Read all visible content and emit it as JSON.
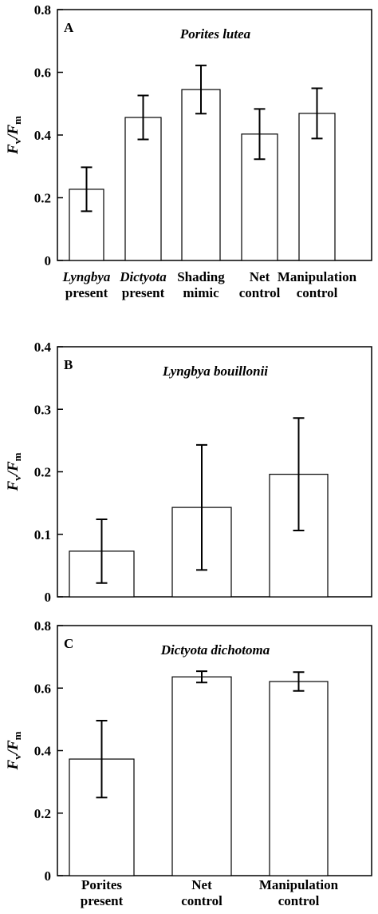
{
  "chart_data": [
    {
      "type": "bar",
      "panel_label": "A",
      "title": "Porites lutea",
      "ylabel": [
        "F",
        "v",
        "/F",
        "m"
      ],
      "categories": [
        [
          "Lyngbya",
          "present"
        ],
        [
          "Dictyota",
          "present"
        ],
        [
          "Shading",
          "mimic"
        ],
        [
          "Net",
          "control"
        ],
        [
          "Manipulation",
          "control"
        ]
      ],
      "category_styles": [
        "italic",
        "italic",
        "normal",
        "normal",
        "normal"
      ],
      "values": [
        0.227,
        0.456,
        0.545,
        0.403,
        0.469
      ],
      "errors": [
        0.07,
        0.07,
        0.077,
        0.08,
        0.08
      ],
      "color": "#ffffff",
      "ylim": [
        0,
        0.8
      ],
      "yticks": [
        0,
        0.2,
        0.4,
        0.6,
        0.8
      ]
    },
    {
      "type": "bar",
      "panel_label": "B",
      "title": "Lyngbya bouillonii",
      "ylabel": [
        "F",
        "v",
        "/F",
        "m"
      ],
      "categories": [
        null,
        null,
        null
      ],
      "values": [
        0.073,
        0.143,
        0.196
      ],
      "errors": [
        0.051,
        0.1,
        0.09
      ],
      "color": "#ffffff",
      "ylim": [
        0,
        0.4
      ],
      "yticks": [
        0,
        0.1,
        0.2,
        0.3,
        0.4
      ]
    },
    {
      "type": "bar",
      "panel_label": "C",
      "title": "Dictyota dichotoma",
      "ylabel": [
        "F",
        "v",
        "/F",
        "m"
      ],
      "categories": [
        [
          "Porites",
          "present"
        ],
        [
          "Net",
          "control"
        ],
        [
          "Manipulation",
          "control"
        ]
      ],
      "category_styles": [
        "normal",
        "normal",
        "normal"
      ],
      "values": [
        0.373,
        0.636,
        0.621
      ],
      "errors": [
        0.123,
        0.018,
        0.03
      ],
      "color": "#ffffff",
      "ylim": [
        0,
        0.8
      ],
      "yticks": [
        0,
        0.2,
        0.4,
        0.6,
        0.8
      ]
    }
  ]
}
